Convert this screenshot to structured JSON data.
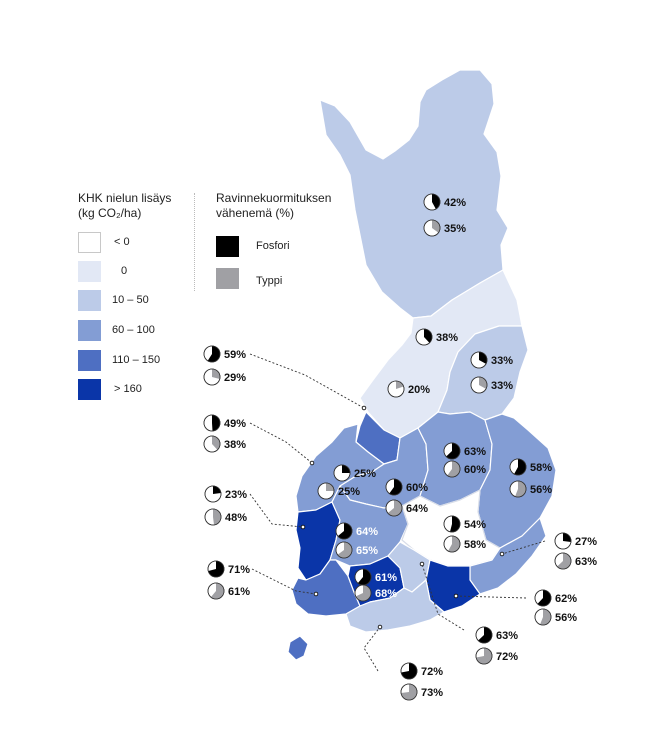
{
  "legend": {
    "sink_title_line1": "KHK nielun lisäys",
    "sink_title_line2": "(kg CO₂/ha)",
    "sink_classes": [
      {
        "label": "< 0",
        "color": "#ffffff"
      },
      {
        "label": "0",
        "color": "#e2e8f5"
      },
      {
        "label": "10 – 50",
        "color": "#bccbe8"
      },
      {
        "label": "60 – 100",
        "color": "#839dd4"
      },
      {
        "label": "110 – 150",
        "color": "#4e6fc2"
      },
      {
        "label": "> 160",
        "color": "#0a35a8"
      }
    ],
    "nutrient_title_line1": "Ravinnekuormituksen",
    "nutrient_title_line2": "vähenemä (%)",
    "phosphorus_label": "Fosfori",
    "phosphorus_color": "#000000",
    "nitrogen_label": "Typpi",
    "nitrogen_color": "#a0a0a4"
  },
  "regions": [
    {
      "id": "lappi",
      "class": "10 – 50",
      "fosfori": 42,
      "typpi": 35
    },
    {
      "id": "kainuu",
      "class": "10 – 50",
      "fosfori": 33,
      "typpi": 33
    },
    {
      "id": "pohjois-pohjanmaa",
      "class": "0",
      "fosfori": 38,
      "typpi": 20
    },
    {
      "id": "keski-pohjanmaa",
      "class": "110 – 150",
      "fosfori": 59,
      "typpi": 29
    },
    {
      "id": "pohjanmaa",
      "class": "60 – 100",
      "fosfori": 49,
      "typpi": 38
    },
    {
      "id": "keski-suomi",
      "class": "60 – 100",
      "fosfori": 25,
      "typpi": 25
    },
    {
      "id": "pohjois-savo",
      "class": "60 – 100",
      "fosfori": 60,
      "typpi": 64
    },
    {
      "id": "etela-savo-pohjoinen",
      "class": "60 – 100",
      "fosfori": 63,
      "typpi": 60
    },
    {
      "id": "pohjois-karjala",
      "class": "60 – 100",
      "fosfori": 58,
      "typpi": 56
    },
    {
      "id": "satakunta",
      "class": "> 160",
      "fosfori": 23,
      "typpi": 48
    },
    {
      "id": "pirkanmaa",
      "class": "60 – 100",
      "fosfori": 64,
      "typpi": 65
    },
    {
      "id": "etela-savo",
      "class": "< 0",
      "fosfori": 54,
      "typpi": 58
    },
    {
      "id": "etela-karjala",
      "class": "10 – 50",
      "fosfori": 27,
      "typpi": 63
    },
    {
      "id": "varsinais-suomi",
      "class": "110 – 150",
      "fosfori": 71,
      "typpi": 61
    },
    {
      "id": "hame",
      "class": "> 160",
      "fosfori": 61,
      "typpi": 68
    },
    {
      "id": "kymenlaakso",
      "class": "> 160",
      "fosfori": 62,
      "typpi": 56
    },
    {
      "id": "paijat-hame",
      "class": "10 – 50",
      "fosfori": 63,
      "typpi": 72
    },
    {
      "id": "uusimaa",
      "class": "10 – 50",
      "fosfori": 72,
      "typpi": 73
    }
  ],
  "labels": [
    {
      "region": "lappi",
      "kind": "fosfori",
      "text": "42%"
    },
    {
      "region": "lappi",
      "kind": "typpi",
      "text": "35%"
    },
    {
      "region": "pohjois-pohjanmaa",
      "kind": "fosfori",
      "text": "38%"
    },
    {
      "region": "pohjois-pohjanmaa",
      "kind": "typpi",
      "text": "20%"
    },
    {
      "region": "kainuu",
      "kind": "fosfori",
      "text": "33%"
    },
    {
      "region": "kainuu",
      "kind": "typpi",
      "text": "33%"
    },
    {
      "region": "keski-pohjanmaa",
      "kind": "fosfori",
      "text": "59%"
    },
    {
      "region": "keski-pohjanmaa",
      "kind": "typpi",
      "text": "29%"
    },
    {
      "region": "pohjanmaa",
      "kind": "fosfori",
      "text": "49%"
    },
    {
      "region": "pohjanmaa",
      "kind": "typpi",
      "text": "38%"
    },
    {
      "region": "keski-suomi",
      "kind": "fosfori",
      "text": "25%"
    },
    {
      "region": "keski-suomi",
      "kind": "typpi",
      "text": "25%"
    },
    {
      "region": "pohjois-savo",
      "kind": "fosfori",
      "text": "60%"
    },
    {
      "region": "pohjois-savo",
      "kind": "typpi",
      "text": "64%"
    },
    {
      "region": "etela-savo-pohjoinen",
      "kind": "fosfori",
      "text": "63%"
    },
    {
      "region": "etela-savo-pohjoinen",
      "kind": "typpi",
      "text": "60%"
    },
    {
      "region": "pohjois-karjala",
      "kind": "fosfori",
      "text": "58%"
    },
    {
      "region": "pohjois-karjala",
      "kind": "typpi",
      "text": "56%"
    },
    {
      "region": "satakunta",
      "kind": "fosfori",
      "text": "23%"
    },
    {
      "region": "satakunta",
      "kind": "typpi",
      "text": "48%"
    },
    {
      "region": "pirkanmaa",
      "kind": "fosfori",
      "text": "64%"
    },
    {
      "region": "pirkanmaa",
      "kind": "typpi",
      "text": "65%"
    },
    {
      "region": "etela-savo",
      "kind": "fosfori",
      "text": "54%"
    },
    {
      "region": "etela-savo",
      "kind": "typpi",
      "text": "58%"
    },
    {
      "region": "etela-karjala",
      "kind": "fosfori",
      "text": "27%"
    },
    {
      "region": "etela-karjala",
      "kind": "typpi",
      "text": "63%"
    },
    {
      "region": "varsinais-suomi",
      "kind": "fosfori",
      "text": "71%"
    },
    {
      "region": "varsinais-suomi",
      "kind": "typpi",
      "text": "61%"
    },
    {
      "region": "hame",
      "kind": "fosfori",
      "text": "61%"
    },
    {
      "region": "hame",
      "kind": "typpi",
      "text": "68%"
    },
    {
      "region": "kymenlaakso",
      "kind": "fosfori",
      "text": "62%"
    },
    {
      "region": "kymenlaakso",
      "kind": "typpi",
      "text": "56%"
    },
    {
      "region": "paijat-hame",
      "kind": "fosfori",
      "text": "63%"
    },
    {
      "region": "paijat-hame",
      "kind": "typpi",
      "text": "72%"
    },
    {
      "region": "uusimaa",
      "kind": "fosfori",
      "text": "72%"
    },
    {
      "region": "uusimaa",
      "kind": "typpi",
      "text": "73%"
    }
  ]
}
